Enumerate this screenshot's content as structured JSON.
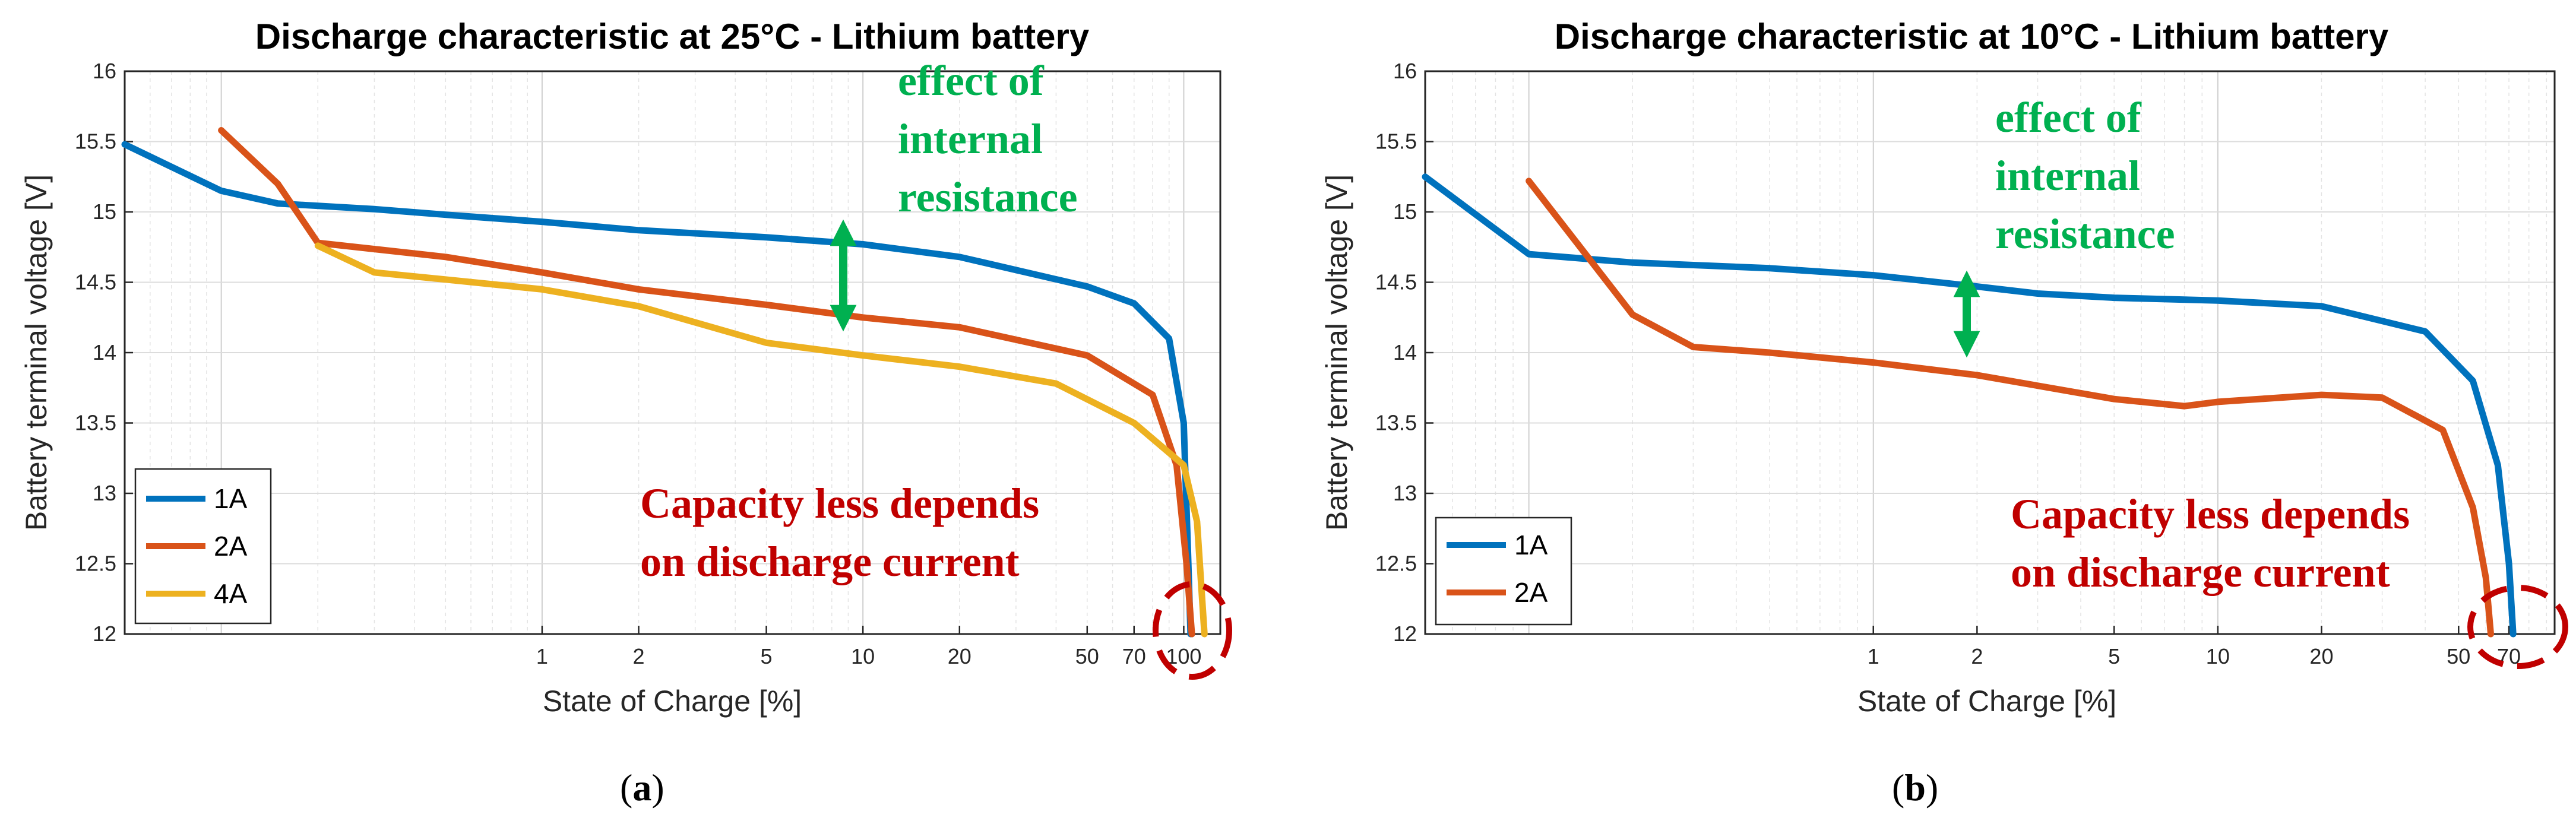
{
  "chart_data": [
    {
      "id": "a",
      "type": "line",
      "title": "Discharge characteristic at 25°C - Lithium battery",
      "xlabel": "State of Charge [%]",
      "ylabel": "Battery terminal voltage [V]",
      "xscale": "log",
      "xlim": [
        0.05,
        130
      ],
      "ylim": [
        12,
        16
      ],
      "grid": true,
      "legend_position": "bottom-left",
      "xtick_values": [
        1,
        2,
        5,
        10,
        20,
        50,
        70,
        100
      ],
      "xtick_labels": [
        "1",
        "2",
        "5",
        "10",
        "20",
        "50",
        "70",
        "100"
      ],
      "ytick_values": [
        12,
        12.5,
        13,
        13.5,
        14,
        14.5,
        15,
        15.5,
        16
      ],
      "ytick_labels": [
        "12",
        "12.5",
        "13",
        "13.5",
        "14",
        "14.5",
        "15",
        "15.5",
        "16"
      ],
      "series": [
        {
          "name": "1A",
          "color": "#0072bd",
          "points": [
            [
              0.05,
              15.48
            ],
            [
              0.1,
              15.15
            ],
            [
              0.15,
              15.06
            ],
            [
              0.3,
              15.02
            ],
            [
              0.5,
              14.98
            ],
            [
              1,
              14.93
            ],
            [
              2,
              14.87
            ],
            [
              5,
              14.82
            ],
            [
              10,
              14.77
            ],
            [
              20,
              14.68
            ],
            [
              50,
              14.47
            ],
            [
              70,
              14.35
            ],
            [
              90,
              14.1
            ],
            [
              100,
              13.5
            ],
            [
              103,
              12.6
            ],
            [
              105,
              12.0
            ]
          ]
        },
        {
          "name": "2A",
          "color": "#d95319",
          "points": [
            [
              0.1,
              15.58
            ],
            [
              0.15,
              15.2
            ],
            [
              0.2,
              14.78
            ],
            [
              0.5,
              14.68
            ],
            [
              1,
              14.57
            ],
            [
              2,
              14.45
            ],
            [
              5,
              14.34
            ],
            [
              10,
              14.25
            ],
            [
              20,
              14.18
            ],
            [
              50,
              13.98
            ],
            [
              80,
              13.7
            ],
            [
              95,
              13.2
            ],
            [
              102,
              12.5
            ],
            [
              106,
              12.0
            ]
          ]
        },
        {
          "name": "4A",
          "color": "#edb120",
          "points": [
            [
              0.2,
              14.76
            ],
            [
              0.3,
              14.57
            ],
            [
              0.5,
              14.52
            ],
            [
              1,
              14.45
            ],
            [
              2,
              14.33
            ],
            [
              5,
              14.07
            ],
            [
              10,
              13.98
            ],
            [
              20,
              13.9
            ],
            [
              40,
              13.78
            ],
            [
              70,
              13.5
            ],
            [
              100,
              13.2
            ],
            [
              110,
              12.8
            ],
            [
              116,
              12.0
            ]
          ]
        }
      ],
      "annotations": {
        "resistance_line1": "effect of",
        "resistance_line2": "internal",
        "resistance_line3": "resistance",
        "capacity_line1": "Capacity less depends",
        "capacity_line2": "on discharge current"
      },
      "caption_open": "(",
      "caption_letter": "a",
      "caption_close": ")"
    },
    {
      "id": "b",
      "type": "line",
      "title": "Discharge characteristic at 10°C - Lithium battery",
      "xlabel": "State of Charge [%]",
      "ylabel": "Battery terminal voltage [V]",
      "xscale": "log",
      "xlim": [
        0.05,
        95
      ],
      "ylim": [
        12,
        16
      ],
      "grid": true,
      "legend_position": "bottom-left",
      "xtick_values": [
        1,
        2,
        5,
        10,
        20,
        50,
        70
      ],
      "xtick_labels": [
        "1",
        "2",
        "5",
        "10",
        "20",
        "50",
        "70"
      ],
      "ytick_values": [
        12,
        12.5,
        13,
        13.5,
        14,
        14.5,
        15,
        15.5,
        16
      ],
      "ytick_labels": [
        "12",
        "12.5",
        "13",
        "13.5",
        "14",
        "14.5",
        "15",
        "15.5",
        "16"
      ],
      "series": [
        {
          "name": "1A",
          "color": "#0072bd",
          "points": [
            [
              0.05,
              15.25
            ],
            [
              0.1,
              14.7
            ],
            [
              0.2,
              14.64
            ],
            [
              0.5,
              14.6
            ],
            [
              1,
              14.55
            ],
            [
              2,
              14.47
            ],
            [
              3,
              14.42
            ],
            [
              5,
              14.39
            ],
            [
              10,
              14.37
            ],
            [
              20,
              14.33
            ],
            [
              40,
              14.15
            ],
            [
              55,
              13.8
            ],
            [
              65,
              13.2
            ],
            [
              70,
              12.5
            ],
            [
              72,
              12.0
            ]
          ]
        },
        {
          "name": "2A",
          "color": "#d95319",
          "points": [
            [
              0.1,
              15.22
            ],
            [
              0.2,
              14.27
            ],
            [
              0.3,
              14.04
            ],
            [
              0.5,
              14.0
            ],
            [
              1,
              13.93
            ],
            [
              2,
              13.84
            ],
            [
              5,
              13.67
            ],
            [
              8,
              13.62
            ],
            [
              10,
              13.65
            ],
            [
              20,
              13.7
            ],
            [
              30,
              13.68
            ],
            [
              45,
              13.45
            ],
            [
              55,
              12.9
            ],
            [
              60,
              12.4
            ],
            [
              62,
              12.0
            ]
          ]
        }
      ],
      "annotations": {
        "resistance_line1": "effect of",
        "resistance_line2": "internal",
        "resistance_line3": "resistance",
        "capacity_line1": "Capacity less depends",
        "capacity_line2": "on discharge current"
      },
      "caption_open": "(",
      "caption_letter": "b",
      "caption_close": ")"
    }
  ],
  "colors": {
    "green_annotation": "#00b050",
    "red_annotation": "#c00000",
    "grid": "#d9d9d9",
    "axis": "#262626"
  }
}
